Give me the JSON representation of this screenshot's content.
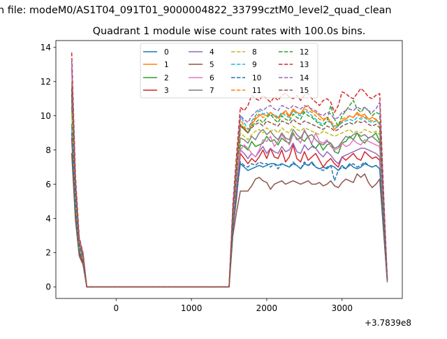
{
  "figure": {
    "suptitle": "n file: modeM0/AS1T04_091T01_9000004822_33799cztM0_level2_quad_clean",
    "title": "Quadrant 1 module wise count rates with 100.0s bins.",
    "offset_label": "+3.7839e8"
  },
  "chart_data": {
    "type": "line",
    "title": "Quadrant 1 module wise count rates with 100.0s bins.",
    "xlabel": "",
    "ylabel": "",
    "x_offset": "+3.7839e8",
    "xlim": [
      -800,
      3800
    ],
    "ylim": [
      -0.68,
      14.4
    ],
    "xticks": [
      0,
      1000,
      2000,
      3000
    ],
    "yticks": [
      0,
      2,
      4,
      6,
      8,
      10,
      12,
      14
    ],
    "legend_position": "upper center",
    "x": [
      -590,
      -540,
      -490,
      -440,
      -390,
      1500,
      1550,
      1600,
      1650,
      1700,
      1750,
      1800,
      1850,
      1900,
      1950,
      2000,
      2050,
      2100,
      2150,
      2200,
      2250,
      2300,
      2350,
      2400,
      2450,
      2500,
      2550,
      2600,
      2650,
      2700,
      2750,
      2800,
      2850,
      2900,
      2950,
      3000,
      3050,
      3100,
      3150,
      3200,
      3250,
      3300,
      3350,
      3400,
      3450,
      3500,
      3550,
      3600
    ],
    "series": [
      {
        "name": "0",
        "color": "#1f77b4",
        "dash": "solid",
        "values": [
          9.5,
          4.6,
          2.2,
          1.5,
          0,
          0,
          3.6,
          5.6,
          7.2,
          7.0,
          6.8,
          6.9,
          7.0,
          7.1,
          7.0,
          7.1,
          7.2,
          7.2,
          7.1,
          7.2,
          7.1,
          7.0,
          7.2,
          7.1,
          6.9,
          7.2,
          7.1,
          7.3,
          7.0,
          6.9,
          7.0,
          6.9,
          7.1,
          7.0,
          6.8,
          7.1,
          6.9,
          7.2,
          7.0,
          6.9,
          7.0,
          7.2,
          7.1,
          7.0,
          7.1,
          6.9,
          3.8,
          0.4
        ]
      },
      {
        "name": "1",
        "color": "#ff7f0e",
        "dash": "solid",
        "values": [
          11.5,
          5.5,
          2.5,
          1.8,
          0,
          0,
          4.2,
          7.0,
          9.5,
          9.3,
          9.0,
          9.5,
          9.8,
          10.0,
          10.1,
          10.0,
          10.2,
          10.0,
          9.9,
          10.1,
          10.3,
          10.0,
          10.4,
          10.2,
          10.1,
          10.5,
          10.6,
          10.3,
          10.2,
          10.0,
          9.8,
          9.9,
          9.6,
          9.2,
          9.4,
          9.7,
          9.8,
          10.0,
          9.9,
          10.2,
          10.0,
          10.1,
          9.8,
          9.9,
          9.8,
          9.5,
          4.9,
          0.5
        ]
      },
      {
        "name": "2",
        "color": "#2ca02c",
        "dash": "solid",
        "values": [
          10.5,
          5.2,
          2.3,
          1.7,
          0,
          0,
          3.9,
          6.0,
          8.3,
          8.2,
          8.0,
          8.5,
          8.2,
          8.3,
          8.4,
          8.8,
          8.5,
          8.6,
          8.3,
          8.7,
          8.5,
          8.4,
          9.0,
          8.6,
          8.7,
          8.5,
          8.8,
          8.3,
          8.1,
          8.4,
          8.0,
          8.3,
          8.4,
          7.9,
          7.8,
          8.4,
          8.5,
          8.8,
          8.6,
          9.0,
          8.6,
          8.4,
          8.7,
          8.8,
          9.0,
          8.5,
          4.4,
          0.4
        ]
      },
      {
        "name": "3",
        "color": "#d62728",
        "dash": "solid",
        "values": [
          8.7,
          4.3,
          2.0,
          1.4,
          0,
          0,
          3.4,
          5.2,
          7.8,
          7.5,
          7.2,
          7.5,
          7.3,
          7.6,
          8.0,
          7.5,
          8.1,
          7.6,
          7.5,
          8.0,
          7.3,
          7.6,
          8.3,
          7.5,
          7.3,
          7.9,
          7.4,
          7.6,
          7.8,
          7.4,
          7.0,
          7.3,
          7.5,
          7.2,
          7.0,
          7.6,
          7.4,
          7.6,
          7.8,
          7.5,
          7.4,
          7.9,
          7.7,
          7.5,
          7.6,
          7.4,
          3.9,
          0.4
        ]
      },
      {
        "name": "4",
        "color": "#9467bd",
        "dash": "solid",
        "values": [
          11.0,
          5.3,
          2.4,
          1.7,
          0,
          0,
          3.8,
          5.9,
          8.0,
          7.8,
          7.5,
          7.8,
          7.6,
          7.9,
          8.2,
          7.8,
          8.1,
          7.9,
          7.8,
          8.2,
          7.9,
          8.0,
          8.4,
          7.9,
          7.8,
          8.3,
          8.0,
          8.2,
          8.1,
          7.8,
          7.6,
          7.9,
          7.7,
          7.4,
          7.2,
          7.6,
          7.7,
          7.8,
          7.9,
          8.0,
          8.1,
          8.1,
          8.0,
          7.9,
          7.8,
          7.6,
          4.0,
          0.4
        ]
      },
      {
        "name": "5",
        "color": "#8c564b",
        "dash": "solid",
        "values": [
          7.8,
          3.9,
          1.8,
          1.3,
          0,
          0,
          3.0,
          4.4,
          5.6,
          5.6,
          5.6,
          5.9,
          6.3,
          6.4,
          6.2,
          6.1,
          5.7,
          6.0,
          6.1,
          6.2,
          6.0,
          6.1,
          6.2,
          6.1,
          6.0,
          6.1,
          6.2,
          6.0,
          6.0,
          6.1,
          5.9,
          6.0,
          6.2,
          5.9,
          5.8,
          6.1,
          6.3,
          6.2,
          6.1,
          6.6,
          6.4,
          6.6,
          6.1,
          5.8,
          6.0,
          6.3,
          3.3,
          0.3
        ]
      },
      {
        "name": "6",
        "color": "#e377c2",
        "dash": "solid",
        "values": [
          12.8,
          6.0,
          2.7,
          1.9,
          0,
          0,
          4.5,
          6.4,
          8.0,
          8.3,
          8.1,
          7.8,
          7.6,
          8.0,
          8.6,
          8.5,
          8.8,
          8.2,
          8.5,
          8.9,
          8.6,
          8.3,
          8.9,
          8.7,
          8.4,
          9.2,
          8.7,
          8.4,
          9.0,
          8.5,
          8.4,
          8.6,
          8.2,
          8.0,
          8.1,
          8.4,
          8.2,
          8.3,
          8.6,
          8.4,
          8.3,
          8.6,
          8.5,
          8.4,
          8.3,
          8.2,
          4.3,
          0.4
        ]
      },
      {
        "name": "7",
        "color": "#7f7f7f",
        "dash": "solid",
        "values": [
          11.2,
          5.4,
          2.4,
          1.8,
          0,
          0,
          4.0,
          6.5,
          8.7,
          8.6,
          8.4,
          8.8,
          8.6,
          9.0,
          9.2,
          8.9,
          9.1,
          8.8,
          8.6,
          9.0,
          8.7,
          8.6,
          9.2,
          8.9,
          8.7,
          9.1,
          8.8,
          8.9,
          8.6,
          8.4,
          8.3,
          8.5,
          8.4,
          8.1,
          8.2,
          8.5,
          8.8,
          8.7,
          8.9,
          9.0,
          8.8,
          8.9,
          8.7,
          8.8,
          8.6,
          8.4,
          4.4,
          0.4
        ]
      },
      {
        "name": "8",
        "color": "#bcbd22",
        "dash": "dashed",
        "values": [
          10.2,
          5.0,
          2.2,
          1.6,
          0,
          0,
          4.0,
          6.6,
          9.0,
          8.8,
          8.6,
          8.9,
          9.1,
          9.2,
          9.0,
          9.3,
          9.1,
          9.2,
          9.0,
          9.3,
          9.1,
          9.0,
          9.4,
          9.2,
          9.1,
          9.3,
          9.2,
          9.1,
          9.0,
          8.9,
          9.1,
          9.0,
          8.9,
          8.8,
          8.9,
          9.0,
          9.1,
          9.2,
          9.0,
          9.1,
          9.0,
          9.2,
          9.1,
          9.0,
          9.1,
          8.9,
          4.6,
          0.4
        ]
      },
      {
        "name": "9",
        "color": "#17becf",
        "dash": "dashed",
        "values": [
          11.8,
          5.7,
          2.6,
          1.8,
          0,
          0,
          4.3,
          7.2,
          10.0,
          9.6,
          9.2,
          9.7,
          10.0,
          10.3,
          10.1,
          10.2,
          10.0,
          10.1,
          9.9,
          10.2,
          10.0,
          9.9,
          10.3,
          10.1,
          10.0,
          10.3,
          10.2,
          10.0,
          9.8,
          9.6,
          9.5,
          9.7,
          9.6,
          9.3,
          9.4,
          9.6,
          9.7,
          9.8,
          9.7,
          9.9,
          9.8,
          9.9,
          9.7,
          9.6,
          9.7,
          9.5,
          4.9,
          0.5
        ]
      },
      {
        "name": "10",
        "color": "#1f77b4",
        "dash": "dashed",
        "values": [
          9.0,
          4.4,
          2.1,
          1.5,
          0,
          0,
          3.3,
          5.3,
          7.3,
          7.1,
          7.0,
          7.2,
          7.1,
          7.3,
          7.2,
          7.2,
          7.0,
          7.2,
          6.9,
          7.2,
          7.1,
          7.0,
          7.3,
          7.1,
          6.9,
          7.3,
          7.1,
          7.2,
          7.0,
          6.9,
          6.8,
          7.0,
          7.1,
          6.2,
          6.8,
          7.0,
          6.9,
          7.1,
          7.2,
          7.0,
          7.1,
          7.3,
          7.1,
          7.0,
          7.1,
          6.9,
          3.8,
          0.4
        ]
      },
      {
        "name": "11",
        "color": "#ff7f0e",
        "dash": "dashed",
        "values": [
          12.0,
          5.8,
          2.6,
          1.9,
          0,
          0,
          4.4,
          7.1,
          9.8,
          9.4,
          9.0,
          9.6,
          9.9,
          10.1,
          9.9,
          10.0,
          10.2,
          10.0,
          9.8,
          10.1,
          10.2,
          9.9,
          10.3,
          10.2,
          10.1,
          10.4,
          10.3,
          10.2,
          10.0,
          9.8,
          9.7,
          9.9,
          9.7,
          9.4,
          9.5,
          9.8,
          9.9,
          10.0,
          9.9,
          10.1,
          9.9,
          10.0,
          9.8,
          9.7,
          9.8,
          9.6,
          4.9,
          0.5
        ]
      },
      {
        "name": "12",
        "color": "#2ca02c",
        "dash": "dashed",
        "values": [
          11.3,
          5.4,
          2.5,
          1.8,
          0,
          0,
          4.1,
          6.8,
          9.5,
          9.2,
          9.0,
          9.4,
          9.6,
          9.8,
          9.6,
          9.9,
          10.1,
          9.8,
          9.6,
          10.0,
          9.8,
          9.7,
          10.1,
          9.9,
          9.8,
          10.2,
          10.0,
          9.9,
          9.7,
          9.5,
          9.4,
          9.7,
          10.6,
          9.8,
          9.4,
          10.0,
          10.3,
          10.6,
          10.9,
          10.4,
          10.2,
          10.5,
          10.3,
          10.0,
          10.2,
          10.1,
          5.1,
          0.5
        ]
      },
      {
        "name": "13",
        "color": "#d62728",
        "dash": "dashed",
        "values": [
          13.7,
          6.5,
          2.9,
          2.0,
          0,
          0,
          4.8,
          7.8,
          10.5,
          10.3,
          10.6,
          11.2,
          11.0,
          10.9,
          11.2,
          11.0,
          10.8,
          11.1,
          10.9,
          11.2,
          11.3,
          11.1,
          11.0,
          11.2,
          10.9,
          11.2,
          11.3,
          11.0,
          10.8,
          10.6,
          10.9,
          11.0,
          10.8,
          10.2,
          10.6,
          11.4,
          11.3,
          11.1,
          11.0,
          11.3,
          11.6,
          11.4,
          11.1,
          11.0,
          11.2,
          11.3,
          5.7,
          0.5
        ]
      },
      {
        "name": "14",
        "color": "#9467bd",
        "dash": "dashed",
        "values": [
          13.2,
          6.3,
          2.8,
          2.0,
          0,
          0,
          4.6,
          7.4,
          10.0,
          9.8,
          9.6,
          10.0,
          10.2,
          10.4,
          10.3,
          10.5,
          10.6,
          10.4,
          10.3,
          10.6,
          10.5,
          10.4,
          10.6,
          10.5,
          10.4,
          10.6,
          10.5,
          10.4,
          10.3,
          10.1,
          10.0,
          10.2,
          10.1,
          9.8,
          9.9,
          10.2,
          10.3,
          10.4,
          10.3,
          10.5,
          10.4,
          10.5,
          10.3,
          10.2,
          10.4,
          10.8,
          5.4,
          0.5
        ]
      },
      {
        "name": "15",
        "color": "#8c564b",
        "dash": "dashed",
        "values": [
          11.6,
          5.6,
          2.5,
          1.8,
          0,
          0,
          4.2,
          7.0,
          9.4,
          9.2,
          9.0,
          9.3,
          9.5,
          9.6,
          9.4,
          9.7,
          9.6,
          9.5,
          9.4,
          9.7,
          9.6,
          9.5,
          9.8,
          9.6,
          9.5,
          9.7,
          9.6,
          9.5,
          9.4,
          9.3,
          9.2,
          9.4,
          9.3,
          9.1,
          9.2,
          9.4,
          9.5,
          9.6,
          9.5,
          9.7,
          9.6,
          9.7,
          9.5,
          9.4,
          9.5,
          9.3,
          4.8,
          0.4
        ]
      }
    ]
  }
}
